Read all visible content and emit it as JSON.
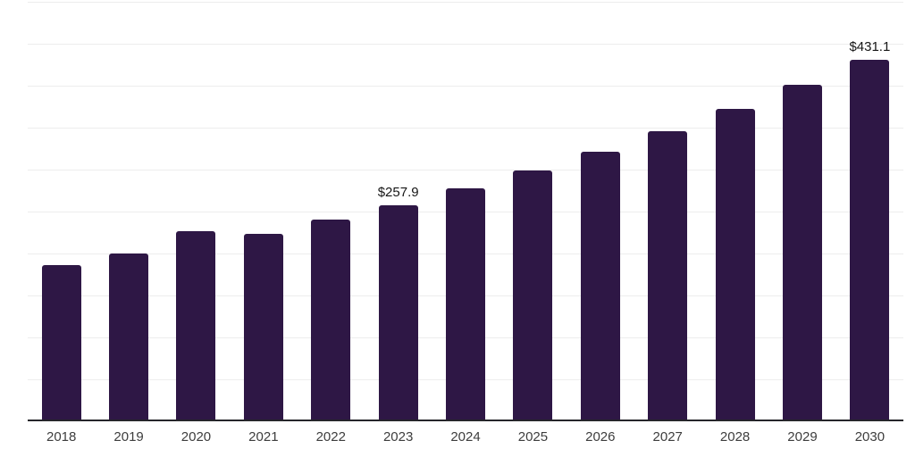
{
  "chart": {
    "background_color": "#ffffff",
    "bar_color": "#2e1745",
    "grid_color": "#ededed",
    "axis_color": "#26262b",
    "value_label_color": "#161616",
    "tick_label_color": "#3d3d3d"
  },
  "chart_data": {
    "type": "bar",
    "title": "",
    "xlabel": "",
    "ylabel": "",
    "categories": [
      "2018",
      "2019",
      "2020",
      "2021",
      "2022",
      "2023",
      "2024",
      "2025",
      "2026",
      "2027",
      "2028",
      "2029",
      "2030"
    ],
    "values": [
      186.4,
      200.3,
      226.3,
      223.2,
      240.0,
      257.9,
      277.5,
      298.7,
      321.4,
      345.9,
      372.3,
      400.6,
      431.1
    ],
    "value_labels": {
      "2023": "$257.9",
      "2030": "$431.1"
    },
    "ylim": [
      0,
      500
    ],
    "grid_step": 50,
    "grid": true,
    "legend_position": "none",
    "y_tick_labels_visible": false
  }
}
